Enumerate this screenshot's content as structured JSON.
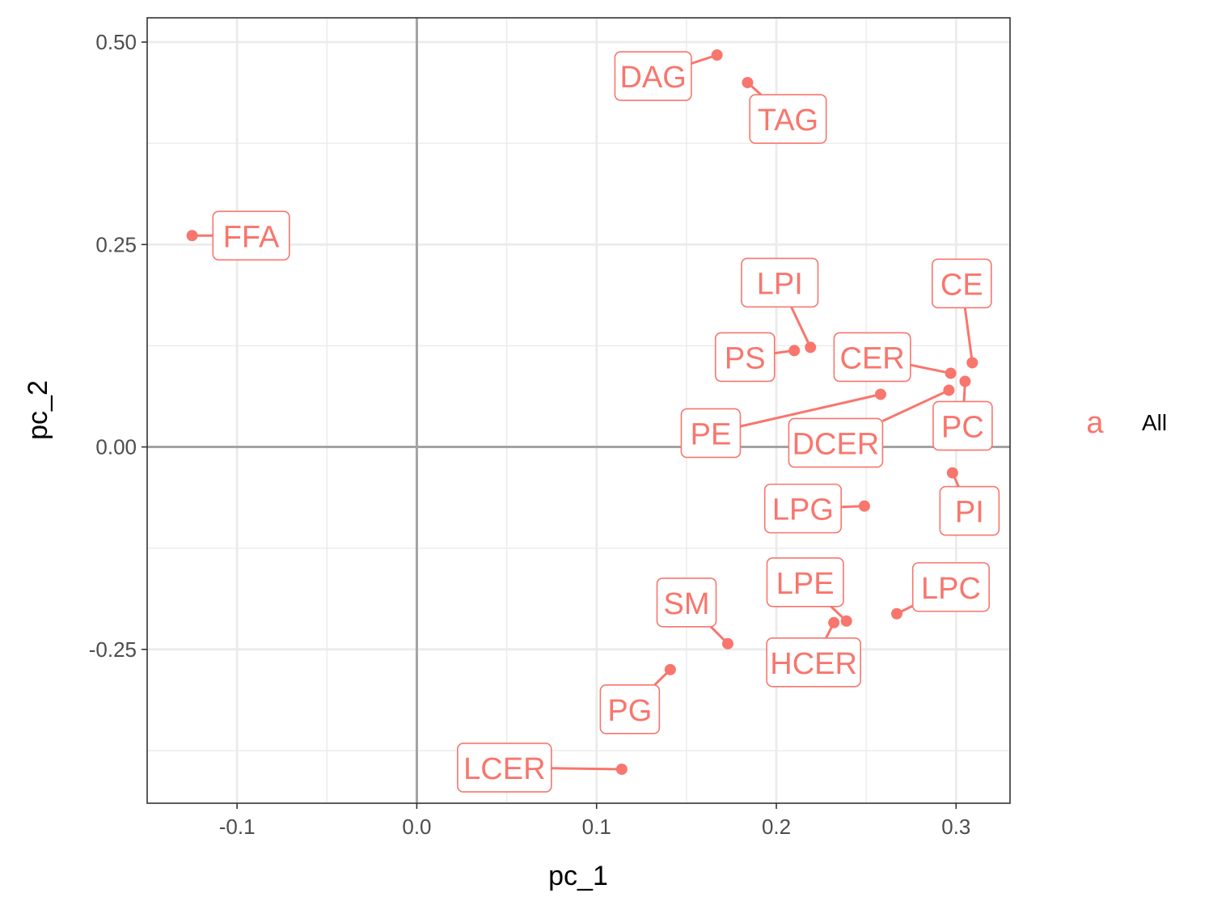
{
  "chart_data": {
    "type": "scatter",
    "xlabel": "pc_1",
    "ylabel": "pc_2",
    "xlim": [
      -0.15,
      0.33
    ],
    "ylim": [
      -0.44,
      0.53
    ],
    "x_ticks": [
      -0.1,
      0.0,
      0.1,
      0.2,
      0.3
    ],
    "x_tick_labels": [
      "-0.1",
      "0.0",
      "0.1",
      "0.2",
      "0.3"
    ],
    "y_ticks": [
      -0.25,
      0.0,
      0.25,
      0.5
    ],
    "y_tick_labels": [
      "-0.25",
      "0.00",
      "0.25",
      "0.50"
    ],
    "reference_lines": {
      "x": 0,
      "y": 0
    },
    "grid": true,
    "point_color": "#F8766D",
    "legend": {
      "placement": "right",
      "key_glyph": "a",
      "entries": [
        "All"
      ]
    },
    "series": [
      {
        "points": [
          {
            "label": "DAG",
            "x": 0.167,
            "y": 0.484
          },
          {
            "label": "TAG",
            "x": 0.184,
            "y": 0.45
          },
          {
            "label": "FFA",
            "x": -0.125,
            "y": 0.261
          },
          {
            "label": "LPI",
            "x": 0.219,
            "y": 0.123
          },
          {
            "label": "PS",
            "x": 0.21,
            "y": 0.119
          },
          {
            "label": "CE",
            "x": 0.309,
            "y": 0.104
          },
          {
            "label": "CER",
            "x": 0.297,
            "y": 0.091
          },
          {
            "label": "PC",
            "x": 0.305,
            "y": 0.081
          },
          {
            "label": "DCER",
            "x": 0.296,
            "y": 0.07
          },
          {
            "label": "PE",
            "x": 0.258,
            "y": 0.065
          },
          {
            "label": "PI",
            "x": 0.298,
            "y": -0.032
          },
          {
            "label": "LPG",
            "x": 0.249,
            "y": -0.073
          },
          {
            "label": "LPC",
            "x": 0.267,
            "y": -0.206
          },
          {
            "label": "LPE",
            "x": 0.239,
            "y": -0.215
          },
          {
            "label": "HCER",
            "x": 0.232,
            "y": -0.217
          },
          {
            "label": "SM",
            "x": 0.173,
            "y": -0.243
          },
          {
            "label": "PG",
            "x": 0.141,
            "y": -0.275
          },
          {
            "label": "LCER",
            "x": 0.114,
            "y": -0.398
          }
        ]
      }
    ]
  }
}
